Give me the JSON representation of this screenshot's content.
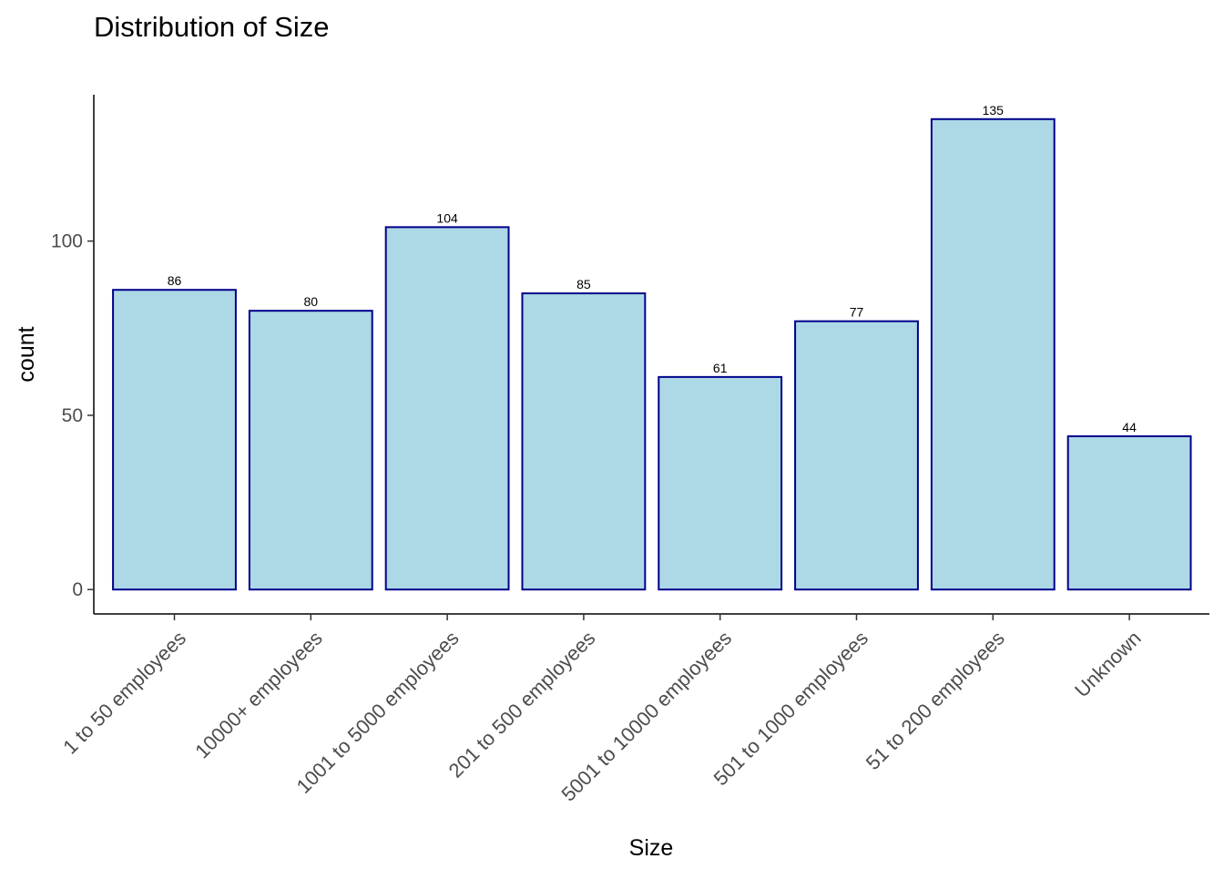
{
  "chart_data": {
    "type": "bar",
    "title": "Distribution of Size",
    "xlabel": "Size",
    "ylabel": "count",
    "categories": [
      "1 to 50 employees",
      "10000+ employees",
      "1001 to 5000 employees",
      "201 to 500 employees",
      "5001 to 10000 employees",
      "501 to 1000 employees",
      "51 to 200 employees",
      "Unknown"
    ],
    "values": [
      86,
      80,
      104,
      85,
      61,
      77,
      135,
      44
    ],
    "data_labels": [
      "86",
      "80",
      "104",
      "85",
      "61",
      "77",
      "135",
      "44"
    ],
    "y_ticks": [
      0,
      50,
      100
    ],
    "y_tick_labels": [
      "0",
      "50",
      "100"
    ],
    "ylim": [
      -7,
      142
    ],
    "grid": false,
    "legend": "none",
    "colors": {
      "bar_fill": "#add8e6",
      "bar_stroke": "#00008b"
    }
  }
}
